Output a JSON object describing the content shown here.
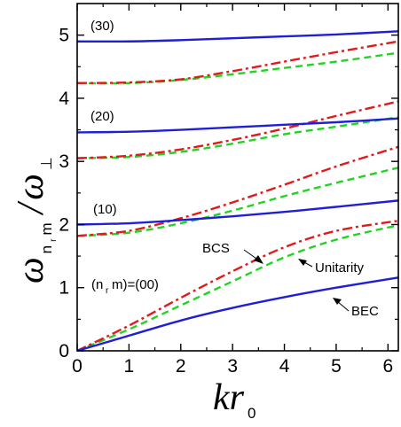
{
  "chart_data": {
    "type": "line",
    "xlabel": {
      "main": "kr",
      "sub": "0"
    },
    "ylabel": {
      "num": "ω",
      "num_sub": "n",
      "num_sub2": "r",
      "num_sub3": "m",
      "slash": "/",
      "den": "ω",
      "den_sub": "⊥"
    },
    "xlim": [
      0,
      6.2
    ],
    "ylim": [
      0,
      5.5
    ],
    "xticks": [
      0,
      1,
      2,
      3,
      4,
      5,
      6
    ],
    "yticks": [
      0,
      1,
      2,
      3,
      4,
      5
    ],
    "colors": {
      "BEC": "#1f1fd6",
      "BCS": "#e01b1b",
      "Unitarity": "#22d422"
    },
    "series": [
      {
        "group": "(00)",
        "style": "BEC",
        "x": [
          0,
          1,
          2,
          3,
          4,
          5,
          6.2
        ],
        "y": [
          0,
          0.24,
          0.48,
          0.68,
          0.85,
          1.0,
          1.16
        ]
      },
      {
        "group": "(00)",
        "style": "BCS",
        "x": [
          0,
          1,
          2,
          3,
          4,
          5,
          6.2
        ],
        "y": [
          0,
          0.4,
          0.84,
          1.26,
          1.64,
          1.9,
          2.06
        ]
      },
      {
        "group": "(00)",
        "style": "Unitarity",
        "x": [
          0,
          1,
          2,
          3,
          4,
          5,
          6.2
        ],
        "y": [
          0,
          0.34,
          0.72,
          1.1,
          1.48,
          1.76,
          1.99
        ]
      },
      {
        "group": "(10)",
        "style": "BEC",
        "x": [
          0,
          1,
          2,
          3,
          4,
          5,
          6.2
        ],
        "y": [
          2.0,
          2.02,
          2.07,
          2.13,
          2.2,
          2.28,
          2.38
        ]
      },
      {
        "group": "(10)",
        "style": "BCS",
        "x": [
          0,
          1,
          2,
          3,
          4,
          5,
          6.2
        ],
        "y": [
          1.82,
          1.9,
          2.1,
          2.35,
          2.63,
          2.92,
          3.23
        ]
      },
      {
        "group": "(10)",
        "style": "Unitarity",
        "x": [
          0,
          1,
          2,
          3,
          4,
          5,
          6.2
        ],
        "y": [
          1.82,
          1.87,
          2.02,
          2.22,
          2.45,
          2.66,
          2.9
        ]
      },
      {
        "group": "(20)",
        "style": "BEC",
        "x": [
          0,
          1,
          2,
          3,
          4,
          5,
          6.2
        ],
        "y": [
          3.46,
          3.47,
          3.5,
          3.54,
          3.58,
          3.62,
          3.68
        ]
      },
      {
        "group": "(20)",
        "style": "BCS",
        "x": [
          0,
          1,
          2,
          3,
          4,
          5,
          6.2
        ],
        "y": [
          3.05,
          3.09,
          3.19,
          3.34,
          3.52,
          3.72,
          3.95
        ]
      },
      {
        "group": "(20)",
        "style": "Unitarity",
        "x": [
          0,
          1,
          2,
          3,
          4,
          5,
          6.2
        ],
        "y": [
          3.05,
          3.07,
          3.15,
          3.28,
          3.43,
          3.55,
          3.7
        ]
      },
      {
        "group": "(30)",
        "style": "BEC",
        "x": [
          0,
          1,
          2,
          3,
          4,
          5,
          6.2
        ],
        "y": [
          4.9,
          4.9,
          4.92,
          4.95,
          4.98,
          5.01,
          5.06
        ]
      },
      {
        "group": "(30)",
        "style": "BCS",
        "x": [
          0,
          1,
          2,
          3,
          4,
          5,
          6.2
        ],
        "y": [
          4.24,
          4.25,
          4.3,
          4.43,
          4.58,
          4.73,
          4.9
        ]
      },
      {
        "group": "(30)",
        "style": "Unitarity",
        "x": [
          0,
          1,
          2,
          3,
          4,
          5,
          6.2
        ],
        "y": [
          4.24,
          4.24,
          4.29,
          4.38,
          4.48,
          4.58,
          4.72
        ]
      }
    ],
    "annotations": {
      "mode_labels": [
        "(30)",
        "(20)",
        "(10)"
      ],
      "n00_label": {
        "pre": "(n",
        "sub": "r",
        "post": "m)=(00)"
      },
      "BCS": "BCS",
      "Unitarity": "Unitarity",
      "BEC": "BEC"
    }
  }
}
